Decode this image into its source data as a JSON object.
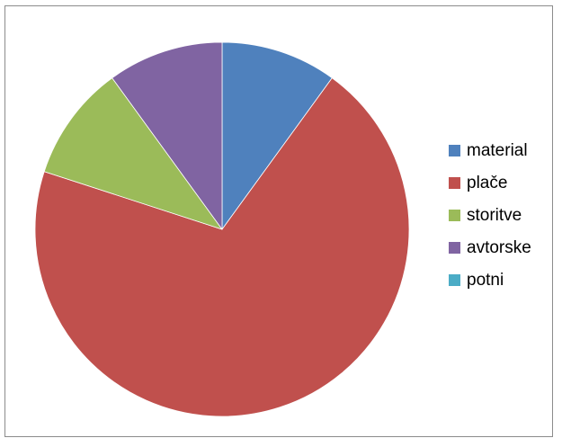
{
  "chart_data": {
    "type": "pie",
    "title": "",
    "legend_position": "right",
    "start_angle_deg": 0,
    "direction": "clockwise",
    "categories": [
      "material",
      "plače",
      "storitve",
      "avtorske",
      "potni"
    ],
    "values": [
      10,
      70,
      10,
      10,
      0
    ],
    "colors": [
      "#4f81bd",
      "#c0504d",
      "#9bbb59",
      "#8064a2",
      "#4bacc6"
    ]
  }
}
